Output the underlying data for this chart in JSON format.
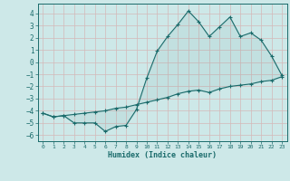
{
  "xlabel": "Humidex (Indice chaleur)",
  "bg_color": "#cde8e8",
  "line_color": "#1a6b6b",
  "grid_color": "#b8d8d8",
  "ylim": [
    -6.5,
    4.8
  ],
  "xlim": [
    -0.5,
    23.5
  ],
  "yticks": [
    -6,
    -5,
    -4,
    -3,
    -2,
    -1,
    0,
    1,
    2,
    3,
    4
  ],
  "xticks": [
    0,
    1,
    2,
    3,
    4,
    5,
    6,
    7,
    8,
    9,
    10,
    11,
    12,
    13,
    14,
    15,
    16,
    17,
    18,
    19,
    20,
    21,
    22,
    23
  ],
  "upper_x": [
    0,
    1,
    2,
    3,
    4,
    5,
    6,
    7,
    8,
    9,
    10,
    11,
    12,
    13,
    14,
    15,
    16,
    17,
    18,
    19,
    20,
    21,
    22,
    23
  ],
  "upper_y": [
    -4.2,
    -4.5,
    -4.4,
    -5.0,
    -5.0,
    -5.0,
    -5.7,
    -5.3,
    -5.2,
    -3.9,
    -1.3,
    0.9,
    2.1,
    3.1,
    4.2,
    3.3,
    2.1,
    2.9,
    3.7,
    2.1,
    2.4,
    1.8,
    0.5,
    -1.1
  ],
  "lower_x": [
    0,
    1,
    2,
    3,
    4,
    5,
    6,
    7,
    8,
    9,
    10,
    11,
    12,
    13,
    14,
    15,
    16,
    17,
    18,
    19,
    20,
    21,
    22,
    23
  ],
  "lower_y": [
    -4.2,
    -4.5,
    -4.4,
    -4.3,
    -4.2,
    -4.1,
    -4.0,
    -3.8,
    -3.7,
    -3.5,
    -3.3,
    -3.1,
    -2.9,
    -2.6,
    -2.4,
    -2.3,
    -2.5,
    -2.2,
    -2.0,
    -1.9,
    -1.8,
    -1.6,
    -1.5,
    -1.2
  ]
}
